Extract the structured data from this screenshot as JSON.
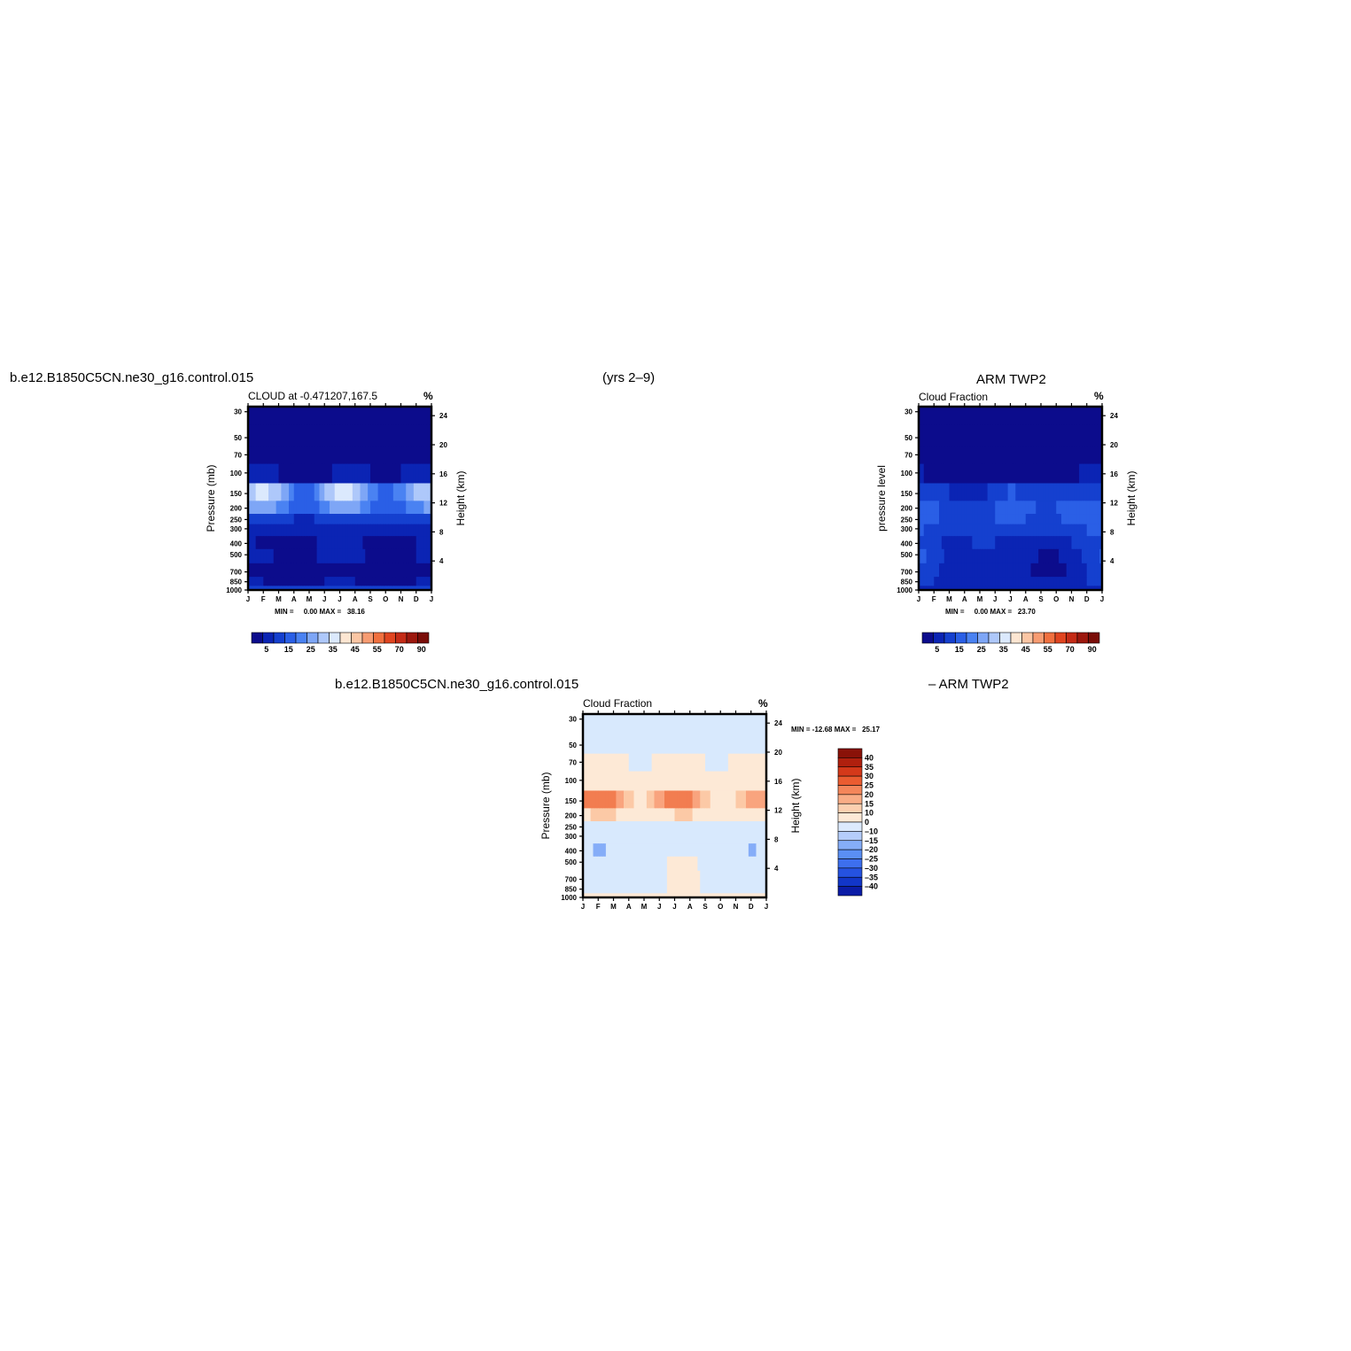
{
  "header": {
    "model_run": "b.e12.B1850C5CN.ne30_g16.control.015",
    "years": "(yrs 2–9)",
    "obs_title": "ARM  TWP2"
  },
  "colors": {
    "levels_pos": [
      "#0c0c8c",
      "#0b24b4",
      "#1540cf",
      "#2a5fe6",
      "#4a82f2",
      "#7ea6f6",
      "#aec8fa",
      "#dbe9fd",
      "#fde6d2",
      "#fbc6a4",
      "#f79c72",
      "#f0703f",
      "#e04520",
      "#c42b16",
      "#9c180e",
      "#7a0d08"
    ],
    "diff_levels": [
      "#08087a",
      "#0b1ca6",
      "#1236c8",
      "#2552e0",
      "#3d6fee",
      "#5a8ff4",
      "#85adf8",
      "#b5cdfb",
      "#dceafd",
      "#fde9d6",
      "#fcd0b0",
      "#f9ad86",
      "#f4865a",
      "#ea5c30",
      "#d4391a",
      "#b0200e",
      "#8a1208"
    ]
  },
  "chart_data": [
    {
      "type": "heatmap",
      "title": "CLOUD at -0.471207,167.5",
      "units": "%",
      "xlabel": "",
      "ylabel": "Pressure (mb)",
      "ylabel_right": "Height (km)",
      "x_ticks": [
        "J",
        "F",
        "M",
        "A",
        "M",
        "J",
        "J",
        "A",
        "S",
        "O",
        "N",
        "D",
        "J"
      ],
      "y_ticks": [
        30,
        50,
        70,
        100,
        150,
        200,
        250,
        300,
        400,
        500,
        700,
        850,
        1000
      ],
      "y_ticks_right": [
        4,
        8,
        12,
        16,
        20,
        24
      ],
      "stats": {
        "min_label": "MIN =",
        "min": "0.00",
        "max_label": "MAX =",
        "max": "38.16"
      },
      "colorbar": {
        "labels": [
          "5",
          "15",
          "25",
          "35",
          "45",
          "55",
          "70",
          "90"
        ]
      },
      "ylim": [
        1000,
        30
      ],
      "levels": [
        30,
        50,
        70,
        100,
        150,
        200,
        250,
        300,
        400,
        500,
        700,
        850,
        1000
      ],
      "months": [
        "J",
        "F",
        "M",
        "A",
        "M",
        "J",
        "J",
        "A",
        "S",
        "O",
        "N",
        "D",
        "J"
      ],
      "values": [
        [
          0,
          0,
          0,
          0,
          0,
          0,
          0,
          0,
          0,
          0,
          0,
          0,
          0
        ],
        [
          0,
          0,
          0,
          0,
          0,
          0,
          0,
          0,
          0,
          0,
          0,
          0,
          0
        ],
        [
          1,
          1,
          1,
          0,
          0,
          1,
          1,
          1,
          0,
          0,
          1,
          1,
          1
        ],
        [
          8,
          6,
          5,
          4,
          3,
          4,
          6,
          6,
          5,
          4,
          5,
          7,
          8
        ],
        [
          34,
          36,
          32,
          20,
          16,
          30,
          38,
          34,
          22,
          18,
          22,
          32,
          34
        ],
        [
          26,
          28,
          24,
          18,
          16,
          22,
          30,
          28,
          20,
          18,
          18,
          24,
          26
        ],
        [
          12,
          14,
          12,
          10,
          9,
          12,
          14,
          12,
          10,
          10,
          10,
          12,
          12
        ],
        [
          8,
          8,
          8,
          8,
          8,
          8,
          9,
          9,
          8,
          8,
          8,
          8,
          8
        ],
        [
          6,
          4,
          3,
          3,
          4,
          6,
          7,
          7,
          3,
          2,
          3,
          5,
          6
        ],
        [
          7,
          7,
          4,
          3,
          4,
          6,
          9,
          8,
          3,
          2,
          3,
          5,
          7
        ],
        [
          5,
          4,
          3,
          3,
          3,
          4,
          5,
          4,
          2,
          2,
          2,
          4,
          5
        ],
        [
          6,
          5,
          4,
          4,
          4,
          5,
          6,
          5,
          4,
          4,
          4,
          5,
          6
        ],
        [
          12,
          12,
          12,
          12,
          12,
          12,
          12,
          12,
          12,
          12,
          12,
          12,
          12
        ]
      ]
    },
    {
      "type": "heatmap",
      "title": "Cloud Fraction",
      "units": "%",
      "xlabel": "",
      "ylabel": "pressure level",
      "ylabel_right": "Height (km)",
      "x_ticks": [
        "J",
        "F",
        "M",
        "A",
        "M",
        "J",
        "J",
        "A",
        "S",
        "O",
        "N",
        "D",
        "J"
      ],
      "y_ticks": [
        30,
        50,
        70,
        100,
        150,
        200,
        250,
        300,
        400,
        500,
        700,
        850,
        1000
      ],
      "y_ticks_right": [
        4,
        8,
        12,
        16,
        20,
        24
      ],
      "stats": {
        "min_label": "MIN =",
        "min": "0.00",
        "max_label": "MAX =",
        "max": "23.70"
      },
      "colorbar": {
        "labels": [
          "5",
          "15",
          "25",
          "35",
          "45",
          "55",
          "70",
          "90"
        ]
      },
      "ylim": [
        1000,
        30
      ],
      "levels": [
        30,
        50,
        70,
        100,
        150,
        200,
        250,
        300,
        400,
        500,
        700,
        850,
        1000
      ],
      "months": [
        "J",
        "F",
        "M",
        "A",
        "M",
        "J",
        "J",
        "A",
        "S",
        "O",
        "N",
        "D",
        "J"
      ],
      "values": [
        [
          0,
          0,
          0,
          0,
          0,
          0,
          0,
          0,
          0,
          0,
          0,
          0,
          0
        ],
        [
          0,
          0,
          0,
          0,
          0,
          0,
          0,
          0,
          0,
          0,
          0,
          0,
          0
        ],
        [
          1,
          0,
          0,
          0,
          0,
          0,
          0,
          0,
          0,
          0,
          0,
          0,
          1
        ],
        [
          6,
          3,
          2,
          1,
          1,
          1,
          2,
          2,
          2,
          3,
          4,
          6,
          6
        ],
        [
          14,
          12,
          10,
          8,
          9,
          11,
          16,
          13,
          10,
          11,
          12,
          14,
          14
        ],
        [
          18,
          16,
          13,
          12,
          13,
          15,
          20,
          17,
          14,
          15,
          16,
          18,
          18
        ],
        [
          20,
          16,
          13,
          12,
          13,
          15,
          17,
          15,
          13,
          14,
          17,
          19,
          20
        ],
        [
          16,
          13,
          11,
          10,
          11,
          12,
          12,
          12,
          11,
          11,
          13,
          15,
          16
        ],
        [
          14,
          12,
          8,
          9,
          11,
          10,
          9,
          9,
          5,
          6,
          10,
          12,
          14
        ],
        [
          16,
          14,
          8,
          9,
          8,
          8,
          7,
          9,
          4,
          4,
          8,
          11,
          16
        ],
        [
          14,
          12,
          6,
          6,
          6,
          6,
          5,
          6,
          3,
          3,
          6,
          10,
          14
        ],
        [
          12,
          10,
          7,
          7,
          7,
          7,
          6,
          7,
          5,
          5,
          7,
          10,
          12
        ],
        [
          10,
          9,
          9,
          9,
          9,
          9,
          9,
          9,
          9,
          9,
          9,
          9,
          10
        ]
      ]
    },
    {
      "type": "heatmap",
      "title": "Cloud Fraction",
      "title_left": "b.e12.B1850C5CN.ne30_g16.control.015",
      "title_right": "– ARM  TWP2",
      "units": "%",
      "xlabel": "",
      "ylabel": "Pressure (mb)",
      "ylabel_right": "Height (km)",
      "x_ticks": [
        "J",
        "F",
        "M",
        "A",
        "M",
        "J",
        "J",
        "A",
        "S",
        "O",
        "N",
        "D",
        "J"
      ],
      "y_ticks": [
        30,
        50,
        70,
        100,
        150,
        200,
        250,
        300,
        400,
        500,
        700,
        850,
        1000
      ],
      "y_ticks_right": [
        4,
        8,
        12,
        16,
        20,
        24
      ],
      "stats": {
        "min_label": "MIN =",
        "min": "-12.68",
        "max_label": "MAX =",
        "max": "25.17"
      },
      "colorbar": {
        "labels": [
          "40",
          "35",
          "30",
          "25",
          "20",
          "15",
          "10",
          "0",
          "–10",
          "–15",
          "–20",
          "–25",
          "–30",
          "–35",
          "–40"
        ]
      },
      "ylim": [
        1000,
        30
      ],
      "levels": [
        30,
        50,
        70,
        100,
        150,
        200,
        250,
        300,
        400,
        500,
        700,
        850,
        1000
      ],
      "months": [
        "J",
        "F",
        "M",
        "A",
        "M",
        "J",
        "J",
        "A",
        "S",
        "O",
        "N",
        "D",
        "J"
      ],
      "values": [
        [
          -1,
          -1,
          -1,
          -1,
          -1,
          -1,
          -1,
          -1,
          -1,
          -1,
          -1,
          -1,
          -1
        ],
        [
          -1,
          -1,
          -1,
          -1,
          -1,
          -1,
          -1,
          -1,
          -1,
          -1,
          -1,
          -1,
          -1
        ],
        [
          1,
          1,
          1,
          0,
          -1,
          1,
          0,
          1,
          0,
          -1,
          1,
          1,
          1
        ],
        [
          4,
          6,
          5,
          4,
          2,
          3,
          5,
          6,
          4,
          2,
          2,
          4,
          4
        ],
        [
          20,
          24,
          22,
          12,
          7,
          19,
          22,
          21,
          12,
          7,
          10,
          18,
          20
        ],
        [
          8,
          12,
          11,
          6,
          3,
          7,
          10,
          11,
          6,
          3,
          2,
          6,
          8
        ],
        [
          -4,
          -2,
          -1,
          -2,
          -4,
          -3,
          -3,
          -3,
          -3,
          -4,
          -7,
          -7,
          -4
        ],
        [
          -8,
          -5,
          -3,
          -2,
          -3,
          -4,
          -3,
          -3,
          -3,
          -3,
          -4,
          -7,
          -8
        ],
        [
          -8,
          -11,
          -9,
          -6,
          -7,
          -4,
          -2,
          -2,
          -2,
          -4,
          -7,
          -11,
          -8
        ],
        [
          -9,
          -7,
          -4,
          -6,
          -4,
          -2,
          2,
          1,
          -1,
          -2,
          -5,
          -6,
          -9
        ],
        [
          -9,
          -8,
          -3,
          -3,
          -3,
          -2,
          2,
          2,
          -1,
          -1,
          -4,
          -6,
          -9
        ],
        [
          -6,
          -5,
          -3,
          -3,
          -3,
          -2,
          2,
          2,
          -1,
          -1,
          -3,
          -5,
          -6
        ],
        [
          2,
          3,
          3,
          3,
          3,
          3,
          3,
          3,
          3,
          3,
          3,
          3,
          2
        ]
      ]
    }
  ]
}
